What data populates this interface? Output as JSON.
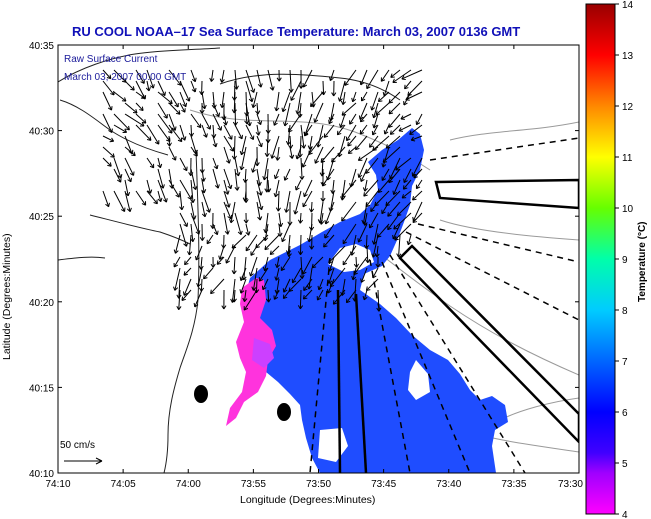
{
  "title": "RU COOL  NOAA–17  Sea Surface Temperature:  March 03, 2007 0136 GMT",
  "overlay": {
    "line1": "Raw Surface Current",
    "line2": "March 03, 2007 00:00 GMT"
  },
  "scale_vector": {
    "label": "50 cm/s"
  },
  "axes": {
    "xlabel": "Longitude (Degrees:Minutes)",
    "ylabel": "Latitude (Degrees:Minutes)",
    "xticks": [
      "74:10",
      "74:05",
      "74:00",
      "73:55",
      "73:50",
      "73:45",
      "73:40",
      "73:35",
      "73:30"
    ],
    "yticks": [
      "40:35",
      "40:30",
      "40:25",
      "40:20",
      "40:15",
      "40:10"
    ]
  },
  "colorbar": {
    "label": "Temperature (°C)",
    "ticks": [
      "14",
      "13",
      "12",
      "11",
      "10",
      "9",
      "8",
      "7",
      "6",
      "5",
      "4"
    ],
    "range": [
      4,
      14
    ],
    "colors": [
      "#ff00ff",
      "#4000ff",
      "#0000ff",
      "#0066ff",
      "#00ccff",
      "#00ffaa",
      "#66ff00",
      "#ffff00",
      "#ff8800",
      "#ff0000",
      "#990000"
    ]
  },
  "chart_data": {
    "type": "heatmap",
    "title": "RU COOL  NOAA–17  Sea Surface Temperature:  March 03, 2007 0136 GMT",
    "xlabel": "Longitude (Degrees:Minutes)",
    "ylabel": "Latitude (Degrees:Minutes)",
    "xlim": [
      "74:10",
      "73:30"
    ],
    "ylim": [
      "40:10",
      "40:35"
    ],
    "color_range": [
      4,
      14
    ],
    "temperature_unit": "°C"
  }
}
